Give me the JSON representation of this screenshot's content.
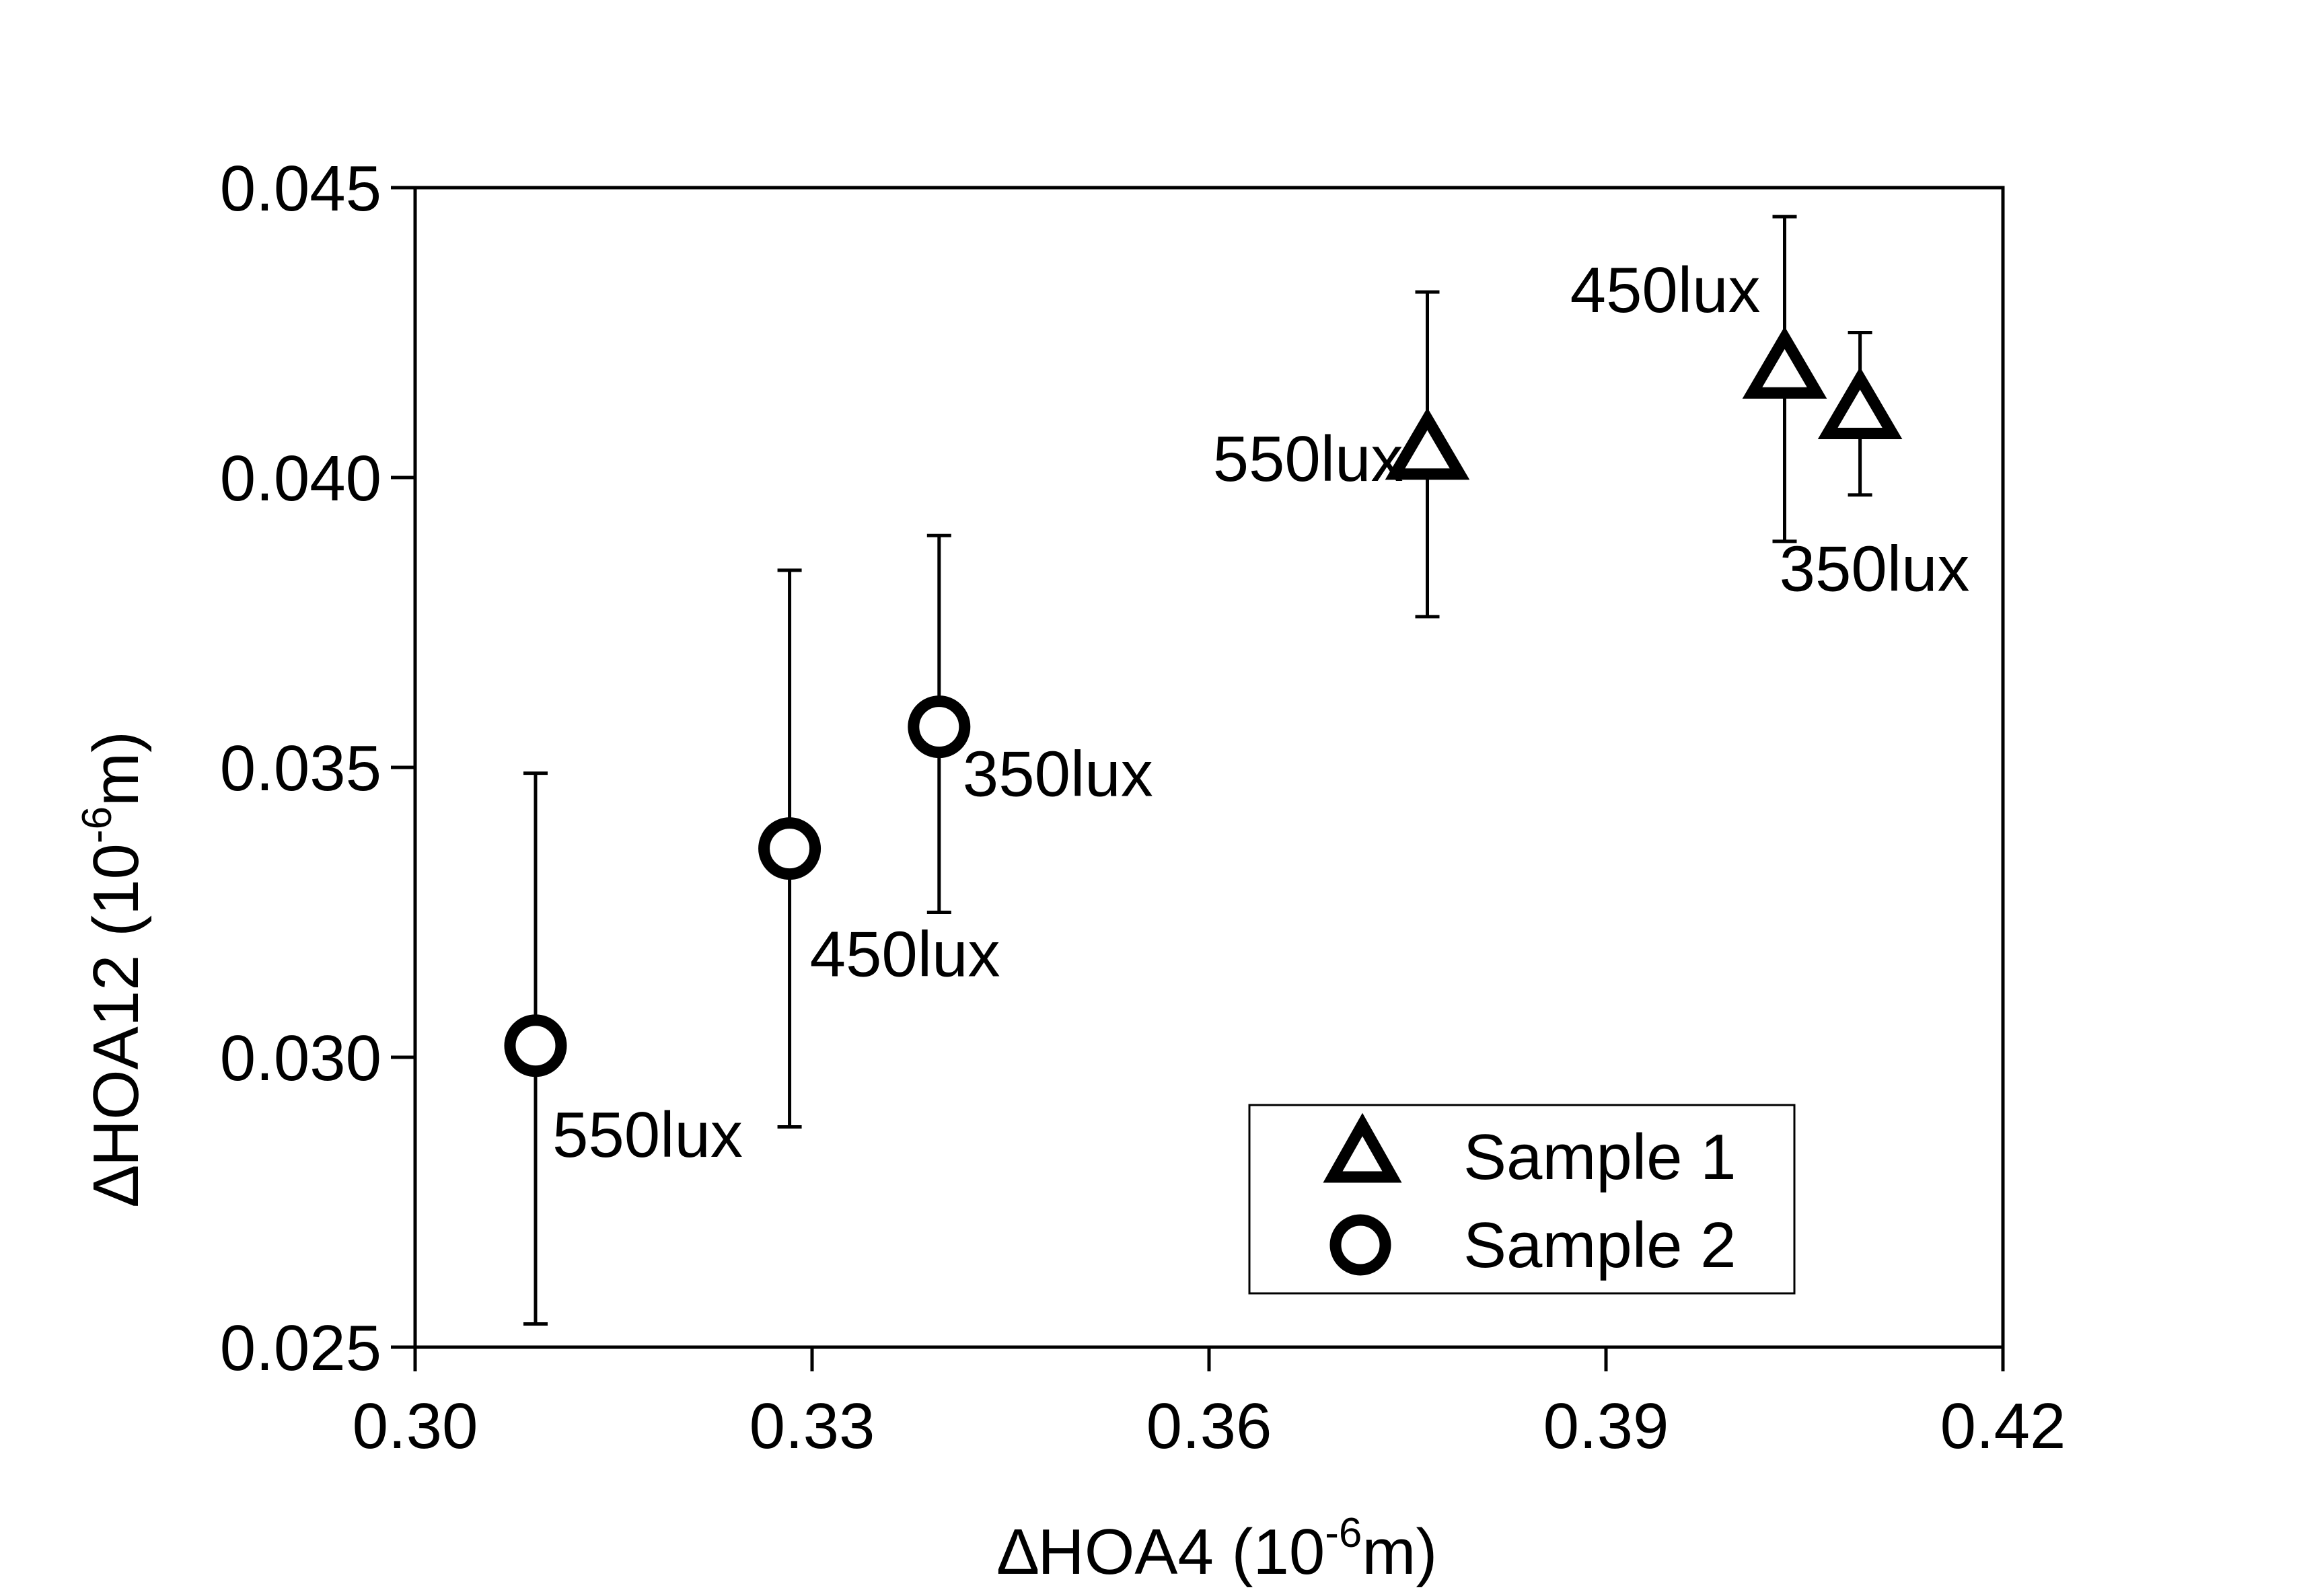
{
  "chart_data": {
    "type": "scatter",
    "xlabel": {
      "prefix": "∆HOA4 (10",
      "exp": "-6",
      "suffix": "m)"
    },
    "ylabel": {
      "prefix": "∆HOA12 (10",
      "exp": "-6",
      "suffix": "m)"
    },
    "xlim": [
      0.3,
      0.42
    ],
    "ylim": [
      0.025,
      0.045
    ],
    "xticks": [
      0.3,
      0.33,
      0.36,
      0.39,
      0.42
    ],
    "xtick_labels": [
      "0.30",
      "0.33",
      "0.36",
      "0.39",
      "0.42"
    ],
    "yticks": [
      0.025,
      0.03,
      0.035,
      0.04,
      0.045
    ],
    "ytick_labels": [
      "0.025",
      "0.030",
      "0.035",
      "0.040",
      "0.045"
    ],
    "grid": false,
    "legend_position": "bottom-right",
    "series": [
      {
        "name": "Sample 1",
        "marker": "open-triangle",
        "points": [
          {
            "x": 0.3765,
            "y": 0.0405,
            "err_low": 0.0376,
            "err_high": 0.0432,
            "label": "550lux"
          },
          {
            "x": 0.4035,
            "y": 0.0419,
            "err_low": 0.0389,
            "err_high": 0.0445,
            "label": "450lux"
          },
          {
            "x": 0.4092,
            "y": 0.0412,
            "err_low": 0.0397,
            "err_high": 0.0425,
            "label": "350lux"
          }
        ]
      },
      {
        "name": "Sample 2",
        "marker": "open-circle",
        "points": [
          {
            "x": 0.3091,
            "y": 0.0302,
            "err_low": 0.0254,
            "err_high": 0.0349,
            "label": "550lux"
          },
          {
            "x": 0.3283,
            "y": 0.0336,
            "err_low": 0.0288,
            "err_high": 0.0384,
            "label": "450lux"
          },
          {
            "x": 0.3396,
            "y": 0.0357,
            "err_low": 0.0325,
            "err_high": 0.039,
            "label": "350lux"
          }
        ]
      }
    ]
  }
}
